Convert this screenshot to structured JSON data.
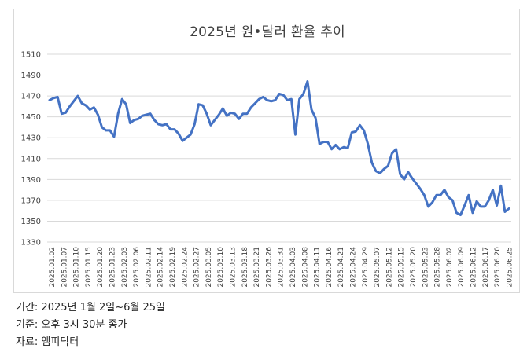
{
  "chart_data": {
    "type": "line",
    "title": "2025년 원•달러 환율 추이",
    "xlabel": "",
    "ylabel": "",
    "ylim": [
      1330,
      1510
    ],
    "yticks": [
      1330,
      1350,
      1370,
      1390,
      1410,
      1430,
      1450,
      1470,
      1490,
      1510
    ],
    "grid": true,
    "x_tick_labels": [
      "2025.01.02",
      "2025.01.07",
      "2025.01.10",
      "2025.01.15",
      "2025.01.20",
      "2025.01.23",
      "2025.02.03",
      "2025.02.06",
      "2025.02.11",
      "2025.02.14",
      "2025.02.19",
      "2025.02.24",
      "2025.02.27",
      "2025.03.05",
      "2025.03.10",
      "2025.03.13",
      "2025.03.18",
      "2025.03.21",
      "2025.03.26",
      "2025.03.31",
      "2025.04.03",
      "2025.04.08",
      "2025.04.11",
      "2025.04.16",
      "2025.04.21",
      "2025.04.24",
      "2025.04.29",
      "2025.05.07",
      "2025.05.12",
      "2025.05.15",
      "2025.05.20",
      "2025.05.23",
      "2025.05.28",
      "2025.06.02",
      "2025.06.09",
      "2025.06.12",
      "2025.06.17",
      "2025.06.20",
      "2025.06.25"
    ],
    "series": [
      {
        "values": [
          1466,
          1468,
          1469,
          1453,
          1454,
          1460,
          1465,
          1470,
          1463,
          1461,
          1457,
          1459,
          1452,
          1440,
          1437,
          1437,
          1431,
          1453,
          1467,
          1462,
          1444,
          1447,
          1448,
          1451,
          1452,
          1453,
          1447,
          1443,
          1442,
          1443,
          1438,
          1438,
          1434,
          1427,
          1430,
          1433,
          1443,
          1462,
          1461,
          1453,
          1442,
          1447,
          1452,
          1458,
          1451,
          1454,
          1453,
          1448,
          1453,
          1453,
          1459,
          1463,
          1467,
          1469,
          1466,
          1465,
          1466,
          1472,
          1471,
          1466,
          1467,
          1433,
          1467,
          1472,
          1484,
          1457,
          1449,
          1424,
          1426,
          1426,
          1419,
          1423,
          1419,
          1421,
          1420,
          1435,
          1436,
          1442,
          1437,
          1424,
          1406,
          1398,
          1396,
          1400,
          1403,
          1415,
          1419,
          1395,
          1390,
          1397,
          1391,
          1386,
          1381,
          1375,
          1364,
          1368,
          1375,
          1375,
          1380,
          1373,
          1370,
          1358,
          1356,
          1365,
          1375,
          1358,
          1369,
          1364,
          1364,
          1370,
          1380,
          1365,
          1384,
          1359,
          1362
        ]
      }
    ]
  },
  "notes": {
    "period": "기간: 2025년 1월 2일~6월 25일",
    "basis": "기준: 오후 3시 30분 종가",
    "source": "자료: 엠피닥터"
  }
}
